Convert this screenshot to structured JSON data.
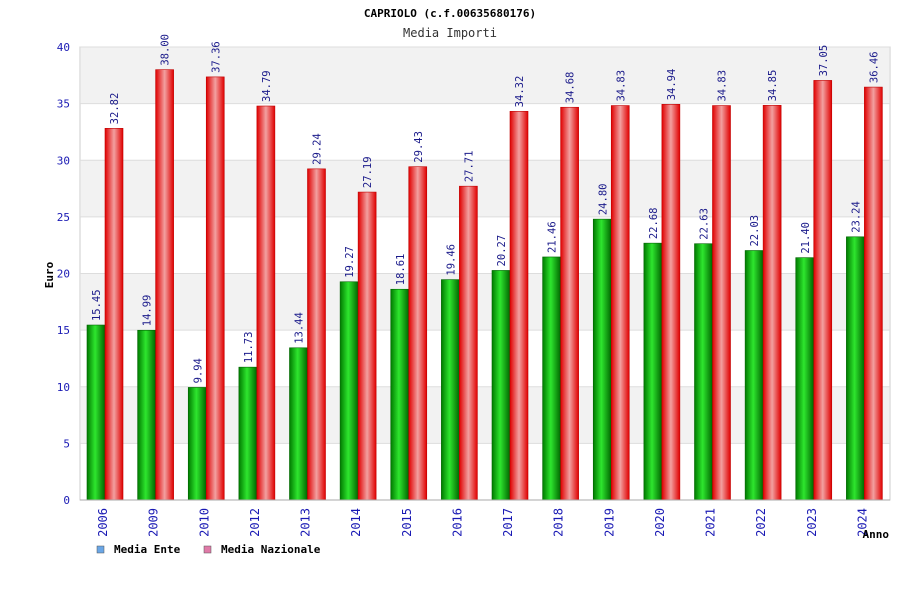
{
  "chart_data": {
    "type": "bar",
    "title": "CAPRIOLO (c.f.00635680176)",
    "subtitle": "Media Importi",
    "xlabel": "Anno",
    "ylabel": "Euro",
    "ylim": [
      0,
      40
    ],
    "yticks": [
      0,
      5,
      10,
      15,
      20,
      25,
      30,
      35,
      40
    ],
    "grid": true,
    "legend_position": "bottom-left",
    "categories": [
      "2006",
      "2009",
      "2010",
      "2012",
      "2013",
      "2014",
      "2015",
      "2016",
      "2017",
      "2018",
      "2019",
      "2020",
      "2021",
      "2022",
      "2023",
      "2024"
    ],
    "series": [
      {
        "name": "Media Ente",
        "values": [
          15.45,
          14.99,
          9.94,
          11.73,
          13.44,
          19.27,
          18.61,
          19.46,
          20.27,
          21.46,
          24.8,
          22.68,
          22.63,
          22.03,
          21.4,
          23.24
        ],
        "labels": [
          "15.45",
          "14.99",
          "9.94",
          "11.73",
          "13.44",
          "19.27",
          "18.61",
          "19.46",
          "20.27",
          "21.46",
          "24.80",
          "22.68",
          "22.63",
          "22.03",
          "21.40",
          "23.24"
        ],
        "color": "#00b400",
        "legend_color": "#6aa6e6"
      },
      {
        "name": "Media Nazionale",
        "values": [
          32.82,
          38.0,
          37.36,
          34.79,
          29.24,
          27.19,
          29.43,
          27.71,
          34.32,
          34.68,
          34.83,
          34.94,
          34.83,
          34.85,
          37.05,
          36.46
        ],
        "labels": [
          "32.82",
          "38.00",
          "37.36",
          "34.79",
          "29.24",
          "27.19",
          "29.43",
          "27.71",
          "34.32",
          "34.68",
          "34.83",
          "34.94",
          "34.83",
          "34.85",
          "37.05",
          "36.46"
        ],
        "color": "#e60000",
        "legend_color": "#e07aa8"
      }
    ]
  }
}
